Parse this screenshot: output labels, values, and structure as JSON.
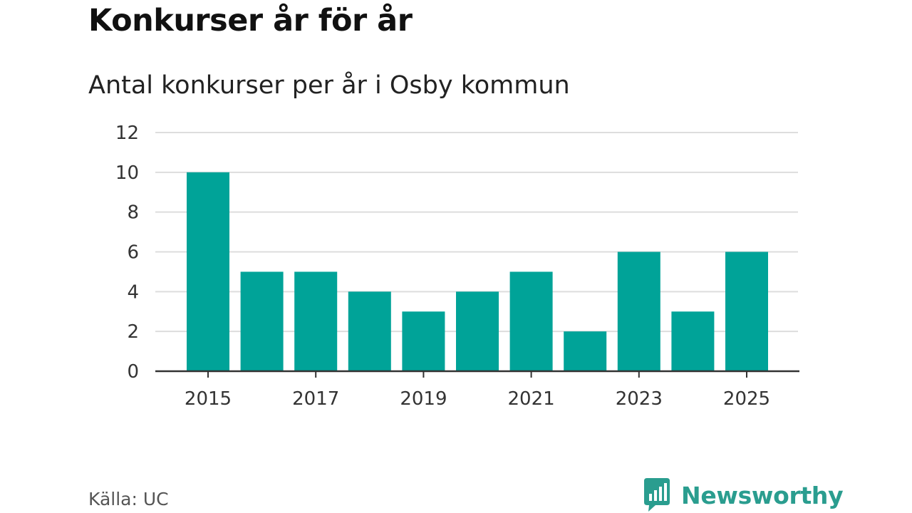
{
  "header": {
    "title": "Konkurser år för år",
    "subtitle": "Antal konkurser per år i Osby kommun"
  },
  "footer": {
    "source": "Källa: UC",
    "brand": "Newsworthy"
  },
  "colors": {
    "bar": "#00a398",
    "gridline": "#dddddd",
    "axis": "#333333",
    "brand": "#2a9d8f"
  },
  "chart_data": {
    "type": "bar",
    "title": "Konkurser år för år",
    "subtitle": "Antal konkurser per år i Osby kommun",
    "categories": [
      "2015",
      "2016",
      "2017",
      "2018",
      "2019",
      "2020",
      "2021",
      "2022",
      "2023",
      "2024",
      "2025"
    ],
    "values": [
      10,
      5,
      5,
      4,
      3,
      4,
      5,
      2,
      6,
      3,
      6
    ],
    "x_tick_labels": [
      "2015",
      "2017",
      "2019",
      "2021",
      "2023",
      "2025"
    ],
    "y_ticks": [
      0,
      2,
      4,
      6,
      8,
      10,
      12
    ],
    "ylim": [
      0,
      12
    ],
    "xlabel": "",
    "ylabel": "",
    "grid": true
  }
}
